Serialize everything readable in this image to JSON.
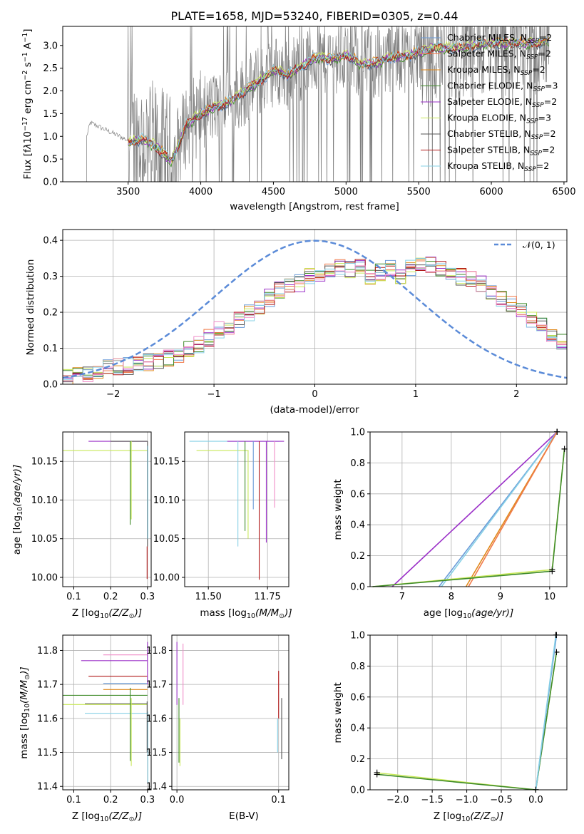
{
  "figure": {
    "title": "PLATE=1658, MJD=53240, FIBERID=0305, z=0.44",
    "colors": {
      "chabrier_miles": "#6a9bd8",
      "salpeter_miles": "#f07a4a",
      "kroupa_miles": "#e08a1c",
      "chabrier_elodie": "#3e8a28",
      "salpeter_elodie": "#9b30c8",
      "kroupa_elodie": "#c8e85a",
      "chabrier_stelib": "#555555",
      "salpeter_stelib": "#b01818",
      "kroupa_stelib": "#86d0e6",
      "pink": "#f08cc8",
      "data": "#7f7f7f",
      "normal": "#5b8bd8"
    }
  },
  "chart_data": [
    {
      "id": "spectrum",
      "type": "line",
      "title": "PLATE=1658, MJD=53240, FIBERID=0305, z=0.44",
      "xlabel": "wavelength [Angstrom, rest frame]",
      "ylabel_parts": [
        "Flux [f",
        "λ",
        "10",
        "−17",
        " erg cm",
        "−2",
        " s",
        "−1",
        " A",
        "−1",
        "]"
      ],
      "xlim": [
        3050,
        6520
      ],
      "ylim": [
        0,
        3.42
      ],
      "xticks": [
        3500,
        4000,
        4500,
        5000,
        5500,
        6000,
        6500
      ],
      "yticks": [
        "0.0",
        "0.5",
        "1.0",
        "1.5",
        "2.0",
        "2.5",
        "3.0"
      ],
      "legend": [
        {
          "base": "Chabrier MILES, N",
          "sub": "SSP",
          "tail": "=2",
          "color": "#6a9bd8"
        },
        {
          "base": "Salpeter MILES, N",
          "sub": "SSP",
          "tail": "=2",
          "color": "#f07a4a"
        },
        {
          "base": "Kroupa MILES, N",
          "sub": "SSP",
          "tail": "=2",
          "color": "#e08a1c"
        },
        {
          "base": "Chabrier ELODIE, N",
          "sub": "SSP",
          "tail": "=3",
          "color": "#3e8a28"
        },
        {
          "base": "Salpeter ELODIE, N",
          "sub": "SSP",
          "tail": "=2",
          "color": "#9b30c8"
        },
        {
          "base": "Kroupa ELODIE, N",
          "sub": "SSP",
          "tail": "=3",
          "color": "#c8e85a"
        },
        {
          "base": "Chabrier STELIB, N",
          "sub": "SSP",
          "tail": "=2",
          "color": "#555555"
        },
        {
          "base": "Salpeter STELIB, N",
          "sub": "SSP",
          "tail": "=2",
          "color": "#b01818"
        },
        {
          "base": "Kroupa STELIB, N",
          "sub": "SSP",
          "tail": "=2",
          "color": "#86d0e6"
        }
      ],
      "legend_loc": "upper-right",
      "model_continuum": {
        "wavelength": [
          3500,
          3600,
          3700,
          3800,
          3900,
          4000,
          4100,
          4200,
          4300,
          4400,
          4500,
          4600,
          4700,
          4800,
          4900,
          5000,
          5100,
          5200,
          5300,
          5400,
          5500,
          5600,
          5700,
          5800,
          5900,
          6000,
          6100,
          6200,
          6300,
          6400
        ],
        "flux": [
          0.85,
          0.95,
          0.75,
          0.45,
          1.25,
          1.5,
          1.65,
          1.75,
          2.0,
          2.2,
          2.45,
          2.35,
          2.55,
          2.75,
          2.7,
          2.8,
          2.6,
          2.6,
          2.75,
          2.75,
          2.85,
          2.95,
          2.95,
          2.95,
          3.0,
          3.05,
          3.05,
          3.05,
          3.05,
          3.1
        ]
      }
    },
    {
      "id": "residuals",
      "type": "histogram",
      "xlabel": "(data-model)/error",
      "ylabel": "Normed distribution",
      "xlim": [
        -2.5,
        2.5
      ],
      "ylim": [
        0,
        0.43
      ],
      "xticks": [
        "−2",
        "−1",
        "0",
        "1",
        "2"
      ],
      "yticks": [
        "0.0",
        "0.1",
        "0.2",
        "0.3",
        "0.4"
      ],
      "legend": [
        "𝒩(0, 1)"
      ],
      "legend_loc": "upper-right",
      "bin_width": 0.1,
      "bin_start": -2.5,
      "envelope": [
        0.02,
        0.025,
        0.03,
        0.04,
        0.045,
        0.05,
        0.05,
        0.055,
        0.06,
        0.065,
        0.075,
        0.085,
        0.1,
        0.11,
        0.13,
        0.15,
        0.16,
        0.18,
        0.2,
        0.22,
        0.24,
        0.26,
        0.27,
        0.28,
        0.3,
        0.31,
        0.32,
        0.33,
        0.32,
        0.33,
        0.3,
        0.31,
        0.32,
        0.3,
        0.32,
        0.34,
        0.33,
        0.32,
        0.31,
        0.3,
        0.29,
        0.28,
        0.26,
        0.24,
        0.22,
        0.2,
        0.18,
        0.16,
        0.14,
        0.12,
        0.13,
        0.11,
        0.1,
        0.1,
        0.09,
        0.08,
        0.07,
        0.06,
        0.05,
        0.05
      ]
    },
    {
      "id": "age-vs-Z",
      "type": "scatter",
      "xlabel_parts": [
        "Z [log",
        "10",
        "(Z/Z",
        "⊙",
        ")]"
      ],
      "ylabel_parts": [
        "age  [log",
        "10",
        "(age/yr)]"
      ],
      "xlim": [
        0.07,
        0.31
      ],
      "ylim": [
        9.988,
        10.188
      ],
      "xticks": [
        "0.1",
        "0.2",
        "0.3"
      ],
      "yticks": [
        "10.00",
        "10.05",
        "10.10",
        "10.15"
      ]
    },
    {
      "id": "age-vs-mass",
      "type": "scatter",
      "xlabel_parts": [
        "mass [log",
        "10",
        "(M/M",
        "⊙",
        ")]"
      ],
      "xlim": [
        11.4,
        11.84
      ],
      "ylim": [
        9.988,
        10.188
      ],
      "xticks": [
        "11.50",
        "11.75"
      ],
      "yticks": [
        "10.00",
        "10.05",
        "10.10",
        "10.15"
      ]
    },
    {
      "id": "weight-vs-age",
      "type": "line",
      "xlabel_parts": [
        "age  [log",
        "10",
        "(age/yr)]"
      ],
      "ylabel": "mass weight",
      "xlim": [
        6.35,
        10.35
      ],
      "ylim": [
        0,
        1
      ],
      "xticks": [
        "7",
        "8",
        "9",
        "10"
      ],
      "yticks": [
        "0.0",
        "0.2",
        "0.4",
        "0.6",
        "0.8",
        "1.0"
      ],
      "series": [
        {
          "color": "#9b30c8",
          "x": [
            6.8,
            10.15
          ],
          "y": [
            0,
            1
          ]
        },
        {
          "color": "#6a9bd8",
          "x": [
            7.75,
            10.15
          ],
          "y": [
            0,
            1
          ]
        },
        {
          "color": "#86d0e6",
          "x": [
            7.8,
            10.15
          ],
          "y": [
            0,
            1
          ]
        },
        {
          "color": "#e08a1c",
          "x": [
            8.3,
            10.15
          ],
          "y": [
            0,
            1
          ]
        },
        {
          "color": "#f07a4a",
          "x": [
            8.35,
            10.15
          ],
          "y": [
            0,
            1
          ]
        },
        {
          "color": "#c8e85a",
          "x": [
            6.4,
            10.05,
            10.3
          ],
          "y": [
            0,
            0.11,
            0.89
          ]
        },
        {
          "color": "#3e8a28",
          "x": [
            6.4,
            10.05,
            10.3
          ],
          "y": [
            0,
            0.1,
            0.89
          ]
        }
      ]
    },
    {
      "id": "mass-vs-Z",
      "type": "scatter",
      "xlabel_parts": [
        "Z [log",
        "10",
        "(Z/Z",
        "⊙",
        ")]"
      ],
      "ylabel_parts": [
        "mass [log",
        "10",
        "(M/M",
        "⊙",
        ")]"
      ],
      "xlim": [
        0.07,
        0.31
      ],
      "ylim": [
        11.39,
        11.845
      ],
      "xticks": [
        "0.1",
        "0.2",
        "0.3"
      ],
      "yticks": [
        "11.4",
        "11.5",
        "11.6",
        "11.7",
        "11.8"
      ]
    },
    {
      "id": "mass-vs-EBV",
      "type": "scatter",
      "xlabel": "E(B-V)",
      "xlim": [
        -0.005,
        0.11
      ],
      "ylim": [
        11.39,
        11.845
      ],
      "xticks": [
        "0.0",
        "0.1"
      ],
      "yticks": [
        "11.4",
        "11.5",
        "11.6",
        "11.7",
        "11.8"
      ]
    },
    {
      "id": "weight-vs-Z",
      "type": "line",
      "xlabel_parts": [
        "Z [log",
        "10",
        "(Z/Z",
        "⊙",
        ")]"
      ],
      "ylabel": "mass weight",
      "xlim": [
        -2.4,
        0.45
      ],
      "ylim": [
        0,
        1
      ],
      "xticks": [
        "−2.0",
        "−1.5",
        "−1.0",
        "−0.5",
        "0.0"
      ],
      "yticks": [
        "0.0",
        "0.2",
        "0.4",
        "0.6",
        "0.8",
        "1.0"
      ],
      "series": [
        {
          "color": "#c8e85a",
          "x": [
            -2.3,
            0.0,
            0.3
          ],
          "y": [
            0.11,
            0,
            0.89
          ]
        },
        {
          "color": "#3e8a28",
          "x": [
            -2.3,
            0.0,
            0.3
          ],
          "y": [
            0.1,
            0,
            0.89
          ]
        },
        {
          "color": "#6a9bd8",
          "x": [
            0.0,
            0.3
          ],
          "y": [
            0,
            1
          ]
        },
        {
          "color": "#86d0e6",
          "x": [
            0.0,
            0.29
          ],
          "y": [
            0,
            1
          ]
        }
      ]
    }
  ]
}
